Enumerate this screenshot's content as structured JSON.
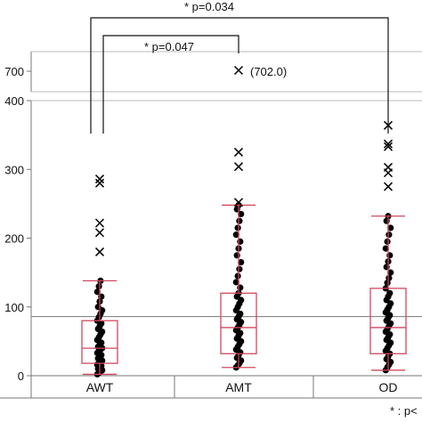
{
  "chart_data": {
    "type": "box",
    "categories": [
      "AWT",
      "AMT",
      "OD"
    ],
    "y_ticks_lower": [
      "0",
      "100",
      "200",
      "300",
      "400"
    ],
    "y_tick_upper": "700",
    "ylim_lower": [
      0,
      400
    ],
    "upper_panel_value": 700,
    "reference_line": 86,
    "boxes": [
      {
        "category": "AWT",
        "whisker_low": 2,
        "q1": 18,
        "median": 40,
        "q3": 80,
        "whisker_high": 138,
        "outliers": [
          180,
          208,
          222,
          280,
          286
        ]
      },
      {
        "category": "AMT",
        "whisker_low": 12,
        "q1": 32,
        "median": 70,
        "q3": 120,
        "whisker_high": 248,
        "outliers": [
          252,
          304,
          325,
          702
        ]
      },
      {
        "category": "OD",
        "whisker_low": 8,
        "q1": 32,
        "median": 70,
        "q3": 127,
        "whisker_high": 232,
        "outliers": [
          275,
          295,
          303,
          333,
          337,
          364
        ]
      }
    ],
    "points": {
      "AWT": [
        2,
        4,
        6,
        8,
        10,
        12,
        14,
        16,
        18,
        20,
        22,
        25,
        28,
        30,
        33,
        36,
        38,
        40,
        42,
        45,
        48,
        52,
        56,
        60,
        64,
        68,
        72,
        76,
        80,
        85,
        90,
        95,
        100,
        108,
        115,
        122,
        130,
        138
      ],
      "AMT": [
        12,
        15,
        18,
        22,
        26,
        30,
        34,
        38,
        42,
        46,
        50,
        54,
        58,
        62,
        66,
        70,
        74,
        78,
        82,
        86,
        90,
        95,
        100,
        105,
        110,
        115,
        120,
        128,
        136,
        145,
        155,
        165,
        175,
        185,
        195,
        205,
        215,
        225,
        235,
        242,
        248
      ],
      "OD": [
        8,
        12,
        16,
        20,
        24,
        28,
        32,
        36,
        40,
        44,
        48,
        52,
        56,
        60,
        64,
        68,
        72,
        76,
        80,
        84,
        88,
        92,
        96,
        100,
        105,
        110,
        115,
        120,
        127,
        135,
        142,
        150,
        158,
        166,
        175,
        185,
        195,
        205,
        215,
        225,
        232
      ]
    },
    "annotations": [
      {
        "text": "* p=0.034",
        "from": "AWT",
        "to": "OD"
      },
      {
        "text": "* p=0.047",
        "from": "AWT",
        "to": "AMT"
      },
      {
        "text": "(702.0)",
        "category": "AMT"
      },
      {
        "text": "* : p<"
      }
    ],
    "colors": {
      "box": "#d2475e",
      "points": "#000000",
      "reference": "#888888",
      "axis": "#777777"
    }
  }
}
